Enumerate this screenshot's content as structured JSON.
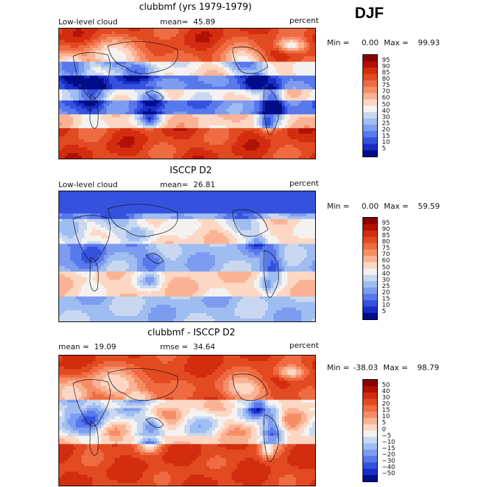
{
  "season": "DJF",
  "chart_data": [
    {
      "type": "heatmap",
      "title": "clubbmf (yrs 1979-1979)",
      "subtitle_left": "Low-level cloud",
      "mean_label": "mean=",
      "mean_value": "45.89",
      "units": "percent",
      "min_label": "Min =",
      "min_value": "0.00",
      "max_label": "Max =",
      "max_value": "99.93",
      "colorbar_levels": [
        "95",
        "90",
        "85",
        "80",
        "75",
        "70",
        "60",
        "50",
        "40",
        "30",
        "25",
        "20",
        "15",
        "10",
        "5"
      ],
      "colors": [
        "#8b0000",
        "#b01205",
        "#d22d0f",
        "#e24a22",
        "#ef6b41",
        "#f58e66",
        "#f9b394",
        "#fcd7c3",
        "#f4f2f0",
        "#c9d8f0",
        "#9fbdf0",
        "#7d9cf0",
        "#5878ec",
        "#3452de",
        "#1a2cc6",
        "#000c8a"
      ]
    },
    {
      "type": "heatmap",
      "title": "ISCCP D2",
      "subtitle_left": "Low-level cloud",
      "mean_label": "mean=",
      "mean_value": "26.81",
      "units": "percent",
      "min_label": "Min =",
      "min_value": "0.00",
      "max_label": "Max =",
      "max_value": "59.59",
      "colorbar_levels": [
        "95",
        "90",
        "85",
        "80",
        "75",
        "70",
        "60",
        "50",
        "40",
        "30",
        "25",
        "20",
        "15",
        "10",
        "5"
      ],
      "colors": [
        "#8b0000",
        "#b01205",
        "#d22d0f",
        "#e24a22",
        "#ef6b41",
        "#f58e66",
        "#f9b394",
        "#fcd7c3",
        "#f4f2f0",
        "#c9d8f0",
        "#9fbdf0",
        "#7d9cf0",
        "#5878ec",
        "#3452de",
        "#1a2cc6",
        "#000c8a"
      ]
    },
    {
      "type": "heatmap",
      "title": "clubbmf - ISCCP D2",
      "mean_label": "mean =",
      "mean_value": "19.09",
      "rmse_label": "rmse =",
      "rmse_value": "34.64",
      "units": "percent",
      "min_label": "Min =",
      "min_value": "-38.03",
      "max_label": "Max =",
      "max_value": "98.79",
      "colorbar_levels": [
        "50",
        "40",
        "30",
        "20",
        "15",
        "10",
        "5",
        "0",
        "−5",
        "−10",
        "−15",
        "−20",
        "−30",
        "−40",
        "−50"
      ],
      "colors": [
        "#8b0000",
        "#b01205",
        "#d22d0f",
        "#e24a22",
        "#ef6b41",
        "#f58e66",
        "#f9b394",
        "#fcd7c3",
        "#f4f2f0",
        "#c9d8f0",
        "#9fbdf0",
        "#7d9cf0",
        "#5878ec",
        "#3452de",
        "#1a2cc6",
        "#000c8a"
      ]
    }
  ]
}
